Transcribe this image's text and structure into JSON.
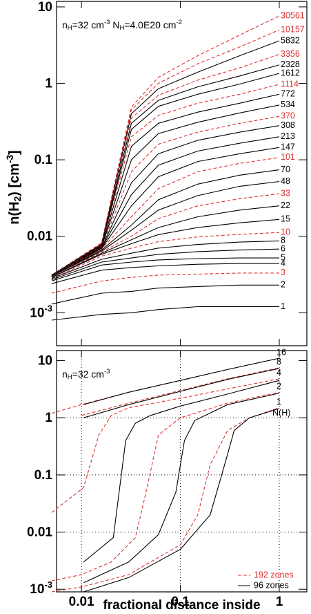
{
  "chart_data": [
    {
      "type": "line",
      "x_log": true,
      "y_log": true,
      "xtick_labels": false,
      "ylabel": [
        {
          "text": "n(H"
        },
        {
          "text": "2",
          "shift": "sub"
        },
        {
          "text": ") [cm"
        },
        {
          "text": "-3",
          "shift": "sup"
        },
        {
          "text": "]"
        }
      ],
      "annotation": [
        {
          "text": "n"
        },
        {
          "text": "H",
          "shift": "sub"
        },
        {
          "text": "=32 cm"
        },
        {
          "text": "-3",
          "shift": "sup"
        },
        {
          "text": " N"
        },
        {
          "text": "H",
          "shift": "sub"
        },
        {
          "text": "=4.0E20 cm"
        },
        {
          "text": "-2",
          "shift": "sup"
        }
      ],
      "xlim": [
        0.0056,
        1.9
      ],
      "xticks": [
        0.01,
        0.1,
        1
      ],
      "ylim": [
        0.00037,
        11.8
      ],
      "yticks": [
        10,
        1,
        0.1,
        0.01,
        {
          "value": 0.001,
          "label": {
            "base": "10",
            "exp": "-3"
          }
        }
      ],
      "x": [
        0.005,
        0.016,
        0.032,
        0.06,
        0.15,
        0.4,
        1
      ],
      "series": [
        {
          "name": "30561",
          "color": "#e03030",
          "dashed": true,
          "values": [
            0.0031,
            0.0082,
            0.49,
            1.2,
            2.3,
            4.3,
            7.6
          ]
        },
        {
          "name": "10157",
          "color": "#e03030",
          "dashed": true,
          "values": [
            0.0031,
            0.008,
            0.45,
            1.0,
            1.8,
            3.0,
            5.0
          ]
        },
        {
          "name": "5832",
          "color": "#000000",
          "dashed": false,
          "values": [
            0.0031,
            0.0079,
            0.4,
            0.85,
            1.4,
            2.3,
            3.6
          ]
        },
        {
          "name": "3356",
          "color": "#e03030",
          "dashed": true,
          "values": [
            0.003,
            0.0078,
            0.35,
            0.7,
            1.1,
            1.6,
            2.4
          ]
        },
        {
          "name": "2328",
          "color": "#000000",
          "dashed": false,
          "values": [
            0.003,
            0.0077,
            0.3,
            0.6,
            0.9,
            1.25,
            1.74
          ]
        },
        {
          "name": "1612",
          "color": "#000000",
          "dashed": false,
          "values": [
            0.003,
            0.0076,
            0.25,
            0.5,
            0.72,
            0.98,
            1.35
          ]
        },
        {
          "name": "1114",
          "color": "#e03030",
          "dashed": true,
          "values": [
            0.003,
            0.0075,
            0.2,
            0.38,
            0.55,
            0.72,
            0.97
          ]
        },
        {
          "name": "772",
          "color": "#000000",
          "dashed": false,
          "values": [
            0.003,
            0.0074,
            0.15,
            0.3,
            0.42,
            0.55,
            0.72
          ]
        },
        {
          "name": "534",
          "color": "#000000",
          "dashed": false,
          "values": [
            0.003,
            0.0073,
            0.1,
            0.22,
            0.31,
            0.41,
            0.52
          ]
        },
        {
          "name": "370",
          "color": "#e03030",
          "dashed": true,
          "values": [
            0.003,
            0.0072,
            0.07,
            0.16,
            0.23,
            0.3,
            0.37
          ]
        },
        {
          "name": "308",
          "color": "#000000",
          "dashed": false,
          "values": [
            0.003,
            0.0071,
            0.05,
            0.12,
            0.18,
            0.23,
            0.28
          ]
        },
        {
          "name": "213",
          "color": "#000000",
          "dashed": false,
          "values": [
            0.003,
            0.007,
            0.035,
            0.085,
            0.13,
            0.165,
            0.2
          ]
        },
        {
          "name": "147",
          "color": "#000000",
          "dashed": false,
          "values": [
            0.003,
            0.0069,
            0.025,
            0.06,
            0.095,
            0.12,
            0.145
          ]
        },
        {
          "name": "101",
          "color": "#e03030",
          "dashed": true,
          "values": [
            0.003,
            0.0068,
            0.018,
            0.042,
            0.07,
            0.09,
            0.107
          ]
        },
        {
          "name": "70",
          "color": "#000000",
          "dashed": false,
          "values": [
            0.003,
            0.0066,
            0.014,
            0.03,
            0.048,
            0.063,
            0.074
          ]
        },
        {
          "name": "48",
          "color": "#000000",
          "dashed": false,
          "values": [
            0.003,
            0.0064,
            0.012,
            0.022,
            0.034,
            0.045,
            0.052
          ]
        },
        {
          "name": "33",
          "color": "#e03030",
          "dashed": true,
          "values": [
            0.0029,
            0.0062,
            0.01,
            0.017,
            0.025,
            0.031,
            0.036
          ]
        },
        {
          "name": "22",
          "color": "#000000",
          "dashed": false,
          "values": [
            0.0029,
            0.006,
            0.009,
            0.013,
            0.018,
            0.022,
            0.025
          ]
        },
        {
          "name": "15",
          "color": "#000000",
          "dashed": false,
          "values": [
            0.0029,
            0.0058,
            0.008,
            0.0105,
            0.013,
            0.015,
            0.0166
          ]
        },
        {
          "name": "10",
          "color": "#e03030",
          "dashed": true,
          "values": [
            0.0028,
            0.0055,
            0.007,
            0.0085,
            0.0098,
            0.0106,
            0.0112
          ]
        },
        {
          "name": "8",
          "color": "#000000",
          "dashed": false,
          "values": [
            0.0028,
            0.005,
            0.006,
            0.007,
            0.0078,
            0.0084,
            0.0087
          ]
        },
        {
          "name": "6",
          "color": "#000000",
          "dashed": false,
          "values": [
            0.0027,
            0.0046,
            0.0052,
            0.0058,
            0.0063,
            0.0066,
            0.0068
          ]
        },
        {
          "name": "5",
          "color": "#000000",
          "dashed": false,
          "values": [
            0.0026,
            0.0042,
            0.0046,
            0.0049,
            0.0051,
            0.0052,
            0.0052
          ]
        },
        {
          "name": "4",
          "color": "#000000",
          "dashed": false,
          "values": [
            0.0024,
            0.0036,
            0.0039,
            0.0041,
            0.0043,
            0.0044,
            0.0044
          ]
        },
        {
          "name": "3",
          "color": "#e03030",
          "dashed": true,
          "values": [
            0.0018,
            0.0026,
            0.0029,
            0.0031,
            0.0032,
            0.0033,
            0.0033
          ]
        },
        {
          "name": "2",
          "color": "#000000",
          "dashed": false,
          "values": [
            0.0013,
            0.0018,
            0.0019,
            0.0021,
            0.0022,
            0.0023,
            0.0023
          ]
        },
        {
          "name": "1",
          "color": "#000000",
          "dashed": false,
          "values": [
            0.0008,
            0.00095,
            0.001,
            0.0011,
            0.0012,
            0.0012,
            0.0012
          ]
        }
      ]
    },
    {
      "type": "line",
      "x_log": true,
      "y_log": true,
      "grid": true,
      "xtick_labels": true,
      "xlabel": "fractional distance inside",
      "annotation": [
        {
          "text": "n"
        },
        {
          "text": "H",
          "shift": "sub"
        },
        {
          "text": "=32 cm"
        },
        {
          "text": "-3",
          "shift": "sup"
        }
      ],
      "curve_label_title": "N(H)",
      "xlim": [
        0.0056,
        1.9
      ],
      "xticks": [
        0.01,
        0.1,
        1
      ],
      "ylim": [
        0.0009,
        15
      ],
      "yticks": [
        10,
        1,
        0.1,
        0.01,
        {
          "value": 0.001,
          "label": {
            "base": "10",
            "exp": "-3"
          }
        }
      ],
      "legend_corner": "lower right",
      "series": [
        {
          "name": "192 zones",
          "color": "#e03030",
          "dashed": true,
          "curves": [
            {
              "label": "16",
              "x": [
                0.005,
                0.01,
                0.03,
                0.1,
                0.3,
                1
              ],
              "values": [
                1.2,
                1.7,
                2.8,
                4.5,
                7,
                11
              ]
            },
            {
              "label": "8",
              "x": [
                0.01,
                0.03,
                0.1,
                0.3,
                1
              ],
              "values": [
                1.1,
                1.8,
                3.0,
                4.8,
                7.5
              ]
            },
            {
              "label": "4",
              "x": [
                0.005,
                0.0105,
                0.015,
                0.02,
                0.03,
                0.1,
                0.3,
                1
              ],
              "values": [
                0.022,
                0.06,
                0.5,
                1.1,
                1.5,
                2.2,
                3.2,
                4.8
              ]
            },
            {
              "label": "2",
              "x": [
                0.005,
                0.01,
                0.02,
                0.035,
                0.045,
                0.06,
                0.1,
                0.3,
                1
              ],
              "values": [
                0.0014,
                0.0018,
                0.003,
                0.008,
                0.05,
                0.5,
                1.0,
                1.8,
                2.8
              ]
            },
            {
              "label": "1",
              "x": [
                0.005,
                0.01,
                0.03,
                0.1,
                0.15,
                0.2,
                0.3,
                0.5,
                1
              ],
              "values": [
                0.0009,
                0.0011,
                0.0018,
                0.006,
                0.02,
                0.15,
                0.6,
                1.0,
                1.5
              ]
            }
          ]
        },
        {
          "name": "96 zones",
          "color": "#000000",
          "dashed": false,
          "curves": [
            {
              "x": [
                0.0105,
                0.03,
                0.1,
                0.3,
                1
              ],
              "values": [
                1.7,
                2.8,
                4.5,
                7,
                11
              ]
            },
            {
              "x": [
                0.0105,
                0.03,
                0.1,
                0.3,
                1
              ],
              "values": [
                1.0,
                1.7,
                2.9,
                4.7,
                7.3
              ]
            },
            {
              "x": [
                0.0105,
                0.021,
                0.028,
                0.035,
                0.05,
                0.1,
                0.3,
                1
              ],
              "values": [
                0.003,
                0.008,
                0.4,
                0.8,
                1.1,
                1.6,
                2.6,
                4.5
              ]
            },
            {
              "x": [
                0.0105,
                0.03,
                0.06,
                0.09,
                0.11,
                0.14,
                0.3,
                1
              ],
              "values": [
                0.0013,
                0.003,
                0.009,
                0.05,
                0.4,
                0.9,
                1.7,
                2.7
              ]
            },
            {
              "x": [
                0.0105,
                0.03,
                0.1,
                0.2,
                0.28,
                0.35,
                0.5,
                1
              ],
              "values": [
                0.0009,
                0.0016,
                0.005,
                0.02,
                0.15,
                0.6,
                1.0,
                1.45
              ]
            }
          ]
        }
      ]
    }
  ]
}
